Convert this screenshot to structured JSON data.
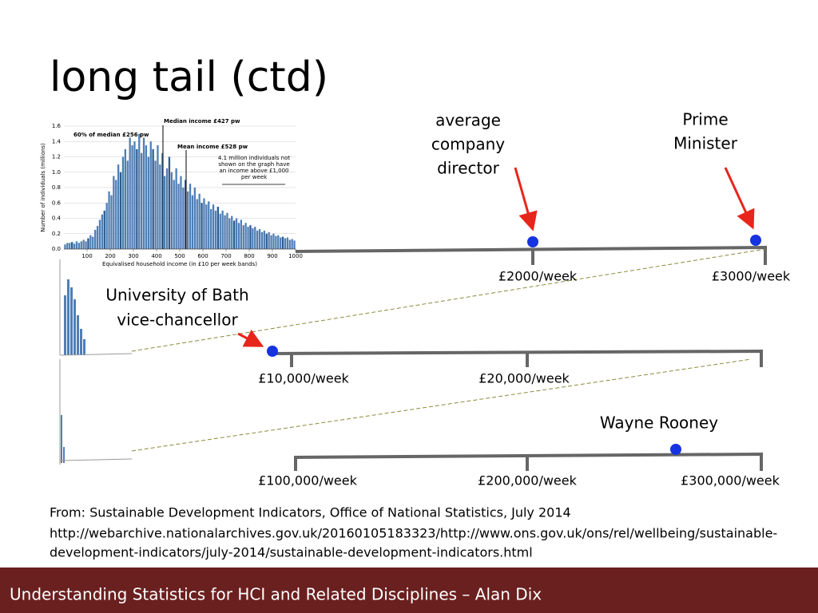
{
  "title": "long tail (ctd)",
  "chart_data": {
    "type": "histogram",
    "bins": [
      0,
      10,
      20,
      30,
      40,
      50,
      60,
      70,
      80,
      90,
      100,
      110,
      120,
      130,
      140,
      150,
      160,
      170,
      180,
      190,
      200,
      210,
      220,
      230,
      240,
      250,
      260,
      270,
      280,
      290,
      300,
      310,
      320,
      330,
      340,
      350,
      360,
      370,
      380,
      390,
      400,
      410,
      420,
      430,
      440,
      450,
      460,
      470,
      480,
      490,
      500,
      510,
      520,
      530,
      540,
      550,
      560,
      570,
      580,
      590,
      600,
      610,
      620,
      630,
      640,
      650,
      660,
      670,
      680,
      690,
      700,
      710,
      720,
      730,
      740,
      750,
      760,
      770,
      780,
      790,
      800,
      810,
      820,
      830,
      840,
      850,
      860,
      870,
      880,
      890,
      900,
      910,
      920,
      930,
      940,
      950,
      960,
      970,
      980,
      990,
      1000
    ],
    "values": [
      0.06,
      0.08,
      0.08,
      0.09,
      0.07,
      0.1,
      0.08,
      0.1,
      0.12,
      0.1,
      0.14,
      0.18,
      0.16,
      0.25,
      0.3,
      0.38,
      0.45,
      0.5,
      0.6,
      0.75,
      0.7,
      0.95,
      0.9,
      1.1,
      1.0,
      1.2,
      1.3,
      1.15,
      1.45,
      1.35,
      1.4,
      1.3,
      1.5,
      1.25,
      1.45,
      1.35,
      1.2,
      1.4,
      1.3,
      1.15,
      1.35,
      1.1,
      1.25,
      0.95,
      1.05,
      1.2,
      1.0,
      0.9,
      1.05,
      0.85,
      0.95,
      0.8,
      0.9,
      0.75,
      0.85,
      0.7,
      0.8,
      0.65,
      0.72,
      0.6,
      0.66,
      0.58,
      0.62,
      0.52,
      0.58,
      0.5,
      0.55,
      0.46,
      0.5,
      0.44,
      0.47,
      0.4,
      0.43,
      0.37,
      0.4,
      0.34,
      0.38,
      0.31,
      0.34,
      0.29,
      0.31,
      0.27,
      0.29,
      0.24,
      0.26,
      0.22,
      0.24,
      0.2,
      0.22,
      0.18,
      0.2,
      0.17,
      0.18,
      0.15,
      0.16,
      0.14,
      0.15,
      0.12,
      0.13,
      0.11
    ],
    "color": "#4f7fb5",
    "xlim": [
      0,
      1000
    ],
    "xticks": [
      100,
      200,
      300,
      400,
      500,
      600,
      700,
      800,
      900,
      1000
    ],
    "ylim": [
      0,
      1.6
    ],
    "yticks": [
      {
        "value": 0,
        "label": "0.0"
      },
      0.2,
      0.4,
      0.6,
      0.8,
      {
        "value": 1,
        "label": "1.0"
      },
      1.2,
      1.4,
      1.6
    ],
    "grid": true,
    "xlabel": "Equivalised household income (in £10 per week bands)",
    "ylabel": "Number of individuals (millions)",
    "annotations": [
      "Median income £427 pw",
      "60% of median £256 pw",
      "Mean income £528 pw",
      [
        "4.1 million individuals not",
        "shown on the graph have",
        "an income above £1,000",
        "per week"
      ]
    ]
  },
  "callouts": {
    "director": [
      "average",
      "company",
      "director"
    ],
    "pm": [
      "Prime",
      "Minister"
    ],
    "vc": [
      "University of Bath",
      "vice-chancellor"
    ],
    "rooney": "Wayne Rooney"
  },
  "scales": {
    "s2000": "£2000/week",
    "s3000": "£3000/week",
    "s10k": "£10,000/week",
    "s20k": "£20,000/week",
    "s100k": "£100,000/week",
    "s200k": "£200,000/week",
    "s300k": "£300,000/week"
  },
  "source": [
    "From: Sustainable Development Indicators, Office of National Statistics, July 2014",
    "http://webarchive.nationalarchives.gov.uk/20160105183323/http://www.ons.gov.uk/ons/rel/wellbeing/sustainable-",
    "development-indicators/july-2014/sustainable-development-indicators.html"
  ],
  "footer": "Understanding Statistics for HCI and Related Disciplines  –  Alan Dix"
}
